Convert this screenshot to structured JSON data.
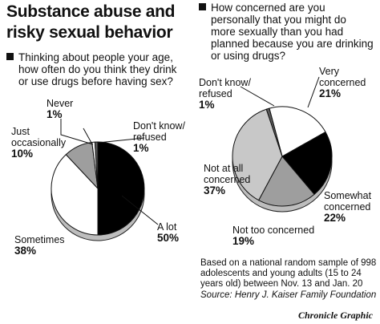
{
  "title_lines": [
    "Substance abuse and",
    "risky sexual behavior"
  ],
  "colors": {
    "black": "#000000",
    "white": "#ffffff",
    "dark_gray": "#5a5a5a",
    "mid_gray": "#9e9e9e",
    "light_gray": "#c8c8c8"
  },
  "chart_data": [
    {
      "type": "pie",
      "title_lines": [
        "Thinking about people your age,",
        "how often do you think they drink",
        "or use drugs before having sex?"
      ],
      "slices": [
        {
          "label": "A lot",
          "value": 50,
          "pct_text": "50%",
          "color": "#000000"
        },
        {
          "label": "Sometimes",
          "value": 38,
          "pct_text": "38%",
          "color": "#ffffff"
        },
        {
          "label": "Just occasionally",
          "label_lines": [
            "Just",
            "occasionally"
          ],
          "value": 10,
          "pct_text": "10%",
          "color": "#9e9e9e"
        },
        {
          "label": "Never",
          "value": 1,
          "pct_text": "1%",
          "color": "#ffffff"
        },
        {
          "label": "Don't know/ refused",
          "label_lines": [
            "Don't know/",
            "refused"
          ],
          "value": 1,
          "pct_text": "1%",
          "color": "#5a5a5a"
        }
      ]
    },
    {
      "type": "pie",
      "title_lines": [
        "How concerned are you",
        "personally that you might do",
        "more sexually than you had",
        "planned because you are drinking",
        "or using drugs?"
      ],
      "slices": [
        {
          "label": "Very concerned",
          "label_lines": [
            "Very",
            "concerned"
          ],
          "value": 21,
          "pct_text": "21%",
          "color": "#ffffff"
        },
        {
          "label": "Somewhat concerned",
          "label_lines": [
            "Somewhat",
            "concerned"
          ],
          "value": 22,
          "pct_text": "22%",
          "color": "#000000"
        },
        {
          "label": "Not too concerned",
          "value": 19,
          "pct_text": "19%",
          "color": "#9e9e9e"
        },
        {
          "label": "Not at all concerned",
          "label_lines": [
            "Not at all",
            "concerned"
          ],
          "value": 37,
          "pct_text": "37%",
          "color": "#c8c8c8"
        },
        {
          "label": "Don't know/ refused",
          "label_lines": [
            "Don't know/",
            "refused"
          ],
          "value": 1,
          "pct_text": "1%",
          "color": "#5a5a5a"
        }
      ]
    }
  ],
  "footnote_lines": [
    "Based on a national random sample of 998",
    "adolescents and young adults (15 to 24",
    "years old) between Nov. 13 and Jan. 20"
  ],
  "source": "Source: Henry J. Kaiser Family Foundation",
  "credit": "Chronicle Graphic"
}
